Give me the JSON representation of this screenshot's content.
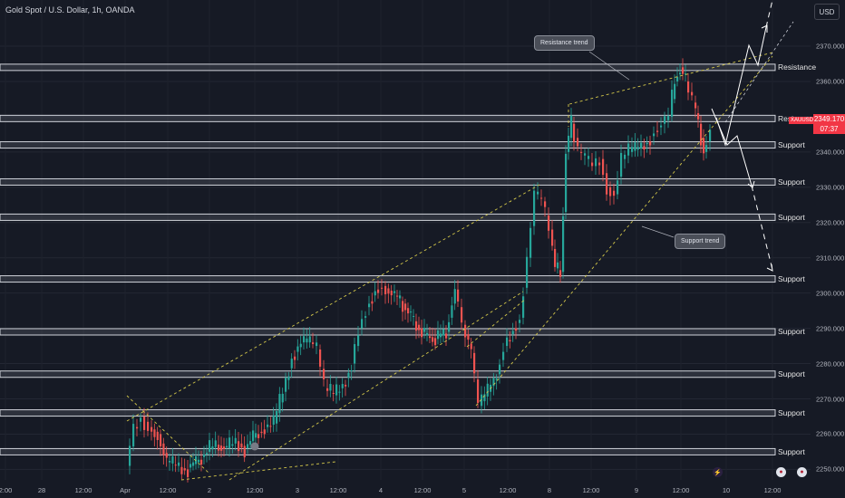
{
  "header": {
    "title": "Gold Spot / U.S. Dollar, 1h, OANDA",
    "currency_button": "USD"
  },
  "price_axis": {
    "ticks": [
      "2370.000",
      "2360.000",
      "2350.000",
      "2340.000",
      "2330.000",
      "2320.000",
      "2310.000",
      "2300.000",
      "2290.000",
      "2280.000",
      "2270.000",
      "2260.000",
      "2250.000"
    ]
  },
  "time_axis": {
    "ticks": [
      "2:00",
      "28",
      "12:00",
      "Apr",
      "12:00",
      "2",
      "12:00",
      "3",
      "12:00",
      "4",
      "12:00",
      "5",
      "12:00",
      "8",
      "12:00",
      "9",
      "12:00",
      "10",
      "12:00"
    ]
  },
  "last_price": {
    "symbol": "XAUUSD",
    "price": "2349.170",
    "countdown": "07:37"
  },
  "levels": [
    {
      "label": "Resistance",
      "price": 2364
    },
    {
      "label": "Resi",
      "price": 2349.5
    },
    {
      "label": "Support",
      "price": 2342
    },
    {
      "label": "Support",
      "price": 2331.5
    },
    {
      "label": "Support",
      "price": 2321.5
    },
    {
      "label": "Support",
      "price": 2304
    },
    {
      "label": "Support",
      "price": 2289
    },
    {
      "label": "Support",
      "price": 2277
    },
    {
      "label": "Support",
      "price": 2266
    },
    {
      "label": "Support",
      "price": 2255
    }
  ],
  "callouts": {
    "resistance": "Resistance trend",
    "support": "Support trend"
  },
  "colors": {
    "background": "#161a25",
    "up": "#26a69a",
    "down": "#ef5350",
    "trend": "#d4c84a",
    "level_band": "#d0d3da",
    "last_price": "#f23645"
  },
  "event_icons": [
    "lightning-icon",
    "us-flag-icon",
    "us-flag-icon"
  ]
}
